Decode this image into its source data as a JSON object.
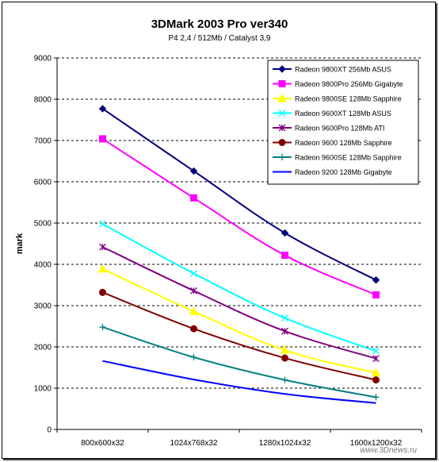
{
  "chart_data": {
    "type": "line",
    "title": "3DMark 2003 Pro ver340",
    "subtitle": "P4 2,4 / 512Mb / Catalyst 3,9",
    "ylabel": "mark",
    "xlabel": "",
    "categories": [
      "800x600x32",
      "1024x768x32",
      "1280x1024x32",
      "1600x1200x32"
    ],
    "ylim": [
      0,
      9000
    ],
    "yticks": [
      0,
      1000,
      2000,
      3000,
      4000,
      5000,
      6000,
      7000,
      8000,
      9000
    ],
    "grid": "horizontal dashed",
    "legend_position": "top-right",
    "watermark": "www.3Dnews.ru",
    "series": [
      {
        "name": "Radeon 9800XT 256Mb ASUS",
        "color": "#000080",
        "marker": "diamond",
        "values": [
          7770,
          6260,
          4760,
          3620
        ]
      },
      {
        "name": "Radeon 9800Pro 256Mb Gigabyte",
        "color": "#ff00ff",
        "marker": "square",
        "values": [
          7040,
          5610,
          4220,
          3260
        ]
      },
      {
        "name": "Radeon 9800SE 128Mb Sapphire",
        "color": "#ffff00",
        "marker": "triangle",
        "values": [
          3890,
          2860,
          1920,
          1370
        ]
      },
      {
        "name": "Radeon 9600XT 128Mb ASUS",
        "color": "#00ffff",
        "marker": "x",
        "values": [
          4980,
          3780,
          2700,
          1900
        ]
      },
      {
        "name": "Radeon 9600Pro 128Mb ATI",
        "color": "#800080",
        "marker": "star",
        "values": [
          4420,
          3360,
          2380,
          1720
        ]
      },
      {
        "name": "Radeon 9600 128Mb Sapphire",
        "color": "#800000",
        "marker": "circle",
        "values": [
          3320,
          2440,
          1730,
          1200
        ]
      },
      {
        "name": "Radeon 9600SE 128Mb Sapphire",
        "color": "#008080",
        "marker": "plus",
        "values": [
          2480,
          1750,
          1200,
          780
        ]
      },
      {
        "name": "Radeon 9200 128Mb Gigabyte",
        "color": "#0000ff",
        "marker": "none",
        "values": [
          1660,
          1210,
          860,
          640
        ]
      }
    ]
  }
}
